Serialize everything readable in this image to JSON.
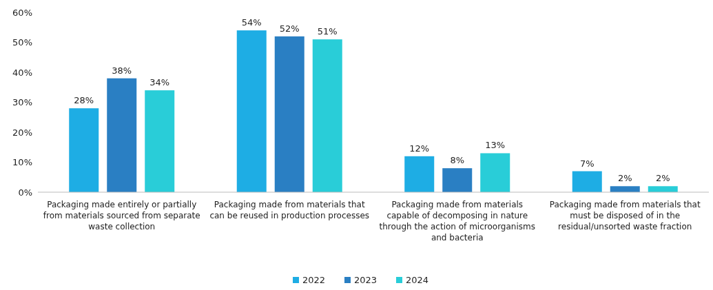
{
  "chart_data": {
    "type": "bar",
    "categories": [
      "Packaging made entirely or partially from materials sourced from separate waste collection",
      "Packaging made from materials that can be reused in production processes",
      "Packaging made from materials capable of decomposing in nature through the action of microorganisms and bacteria",
      "Packaging made from materials that must be disposed of in the residual/unsorted waste fraction"
    ],
    "series": [
      {
        "name": "2022",
        "color": "#1eade4",
        "values": [
          28,
          54,
          12,
          7
        ],
        "value_labels": [
          "28%",
          "54%",
          "12%",
          "7%"
        ]
      },
      {
        "name": "2023",
        "color": "#2a7fc3",
        "values": [
          38,
          52,
          8,
          2
        ],
        "value_labels": [
          "38%",
          "52%",
          "8%",
          "2%"
        ]
      },
      {
        "name": "2024",
        "color": "#29cdd8",
        "values": [
          34,
          51,
          13,
          2
        ],
        "value_labels": [
          "34%",
          "51%",
          "13%",
          "2%"
        ]
      }
    ],
    "ylim": [
      0,
      60
    ],
    "yticks": [
      {
        "value": 0,
        "label": "0%"
      },
      {
        "value": 10,
        "label": "10%"
      },
      {
        "value": 20,
        "label": "20%"
      },
      {
        "value": 30,
        "label": "30%"
      },
      {
        "value": 40,
        "label": "40%"
      },
      {
        "value": 50,
        "label": "50%"
      },
      {
        "value": 60,
        "label": "60%"
      }
    ],
    "grid": false,
    "legend": "bottom"
  }
}
